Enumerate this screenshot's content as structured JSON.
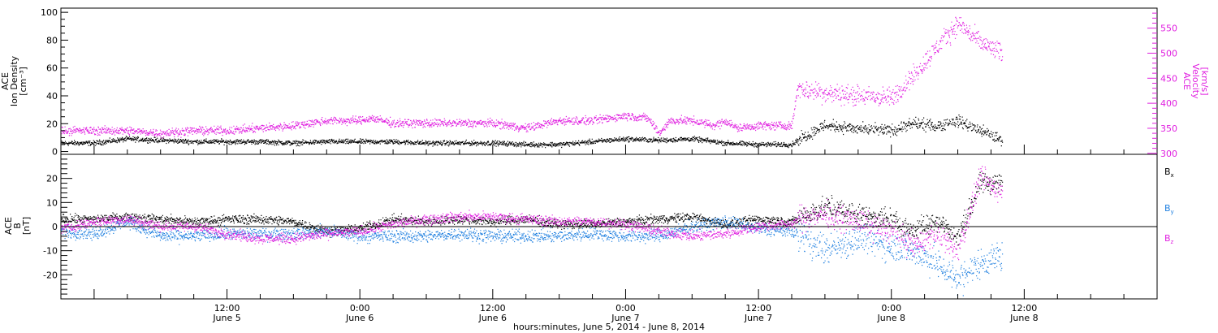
{
  "chart_data": {
    "type": "scatter",
    "xlabel": "hours:minutes, June  5, 2014 - June  8, 2014",
    "time_axis": {
      "range_hours": [
        -3,
        96
      ],
      "ticks": [
        {
          "hour": 12,
          "time": "12:00",
          "date": "June 5"
        },
        {
          "hour": 24,
          "time": "0:00",
          "date": "June 6"
        },
        {
          "hour": 36,
          "time": "12:00",
          "date": "June 6"
        },
        {
          "hour": 48,
          "time": "0:00",
          "date": "June 7"
        },
        {
          "hour": 60,
          "time": "12:00",
          "date": "June 7"
        },
        {
          "hour": 72,
          "time": "0:00",
          "date": "June 8"
        },
        {
          "hour": 84,
          "time": "12:00",
          "date": "June 8"
        }
      ]
    },
    "panels": [
      {
        "id": "plasma",
        "ylabel_lines": [
          "ACE",
          "Ion Density",
          "[cm⁻³]"
        ],
        "y2label_lines": [
          "ACE",
          "Velocity",
          "[km/s]"
        ],
        "ylim": [
          -2,
          103
        ],
        "y2lim": [
          298,
          590
        ],
        "yticks": [
          0,
          20,
          40,
          60,
          80,
          100
        ],
        "y2ticks": [
          300,
          350,
          400,
          450,
          500,
          550
        ],
        "series": [
          {
            "role": "density",
            "axis": "left",
            "color": "#000000",
            "x": [
              -3,
              0,
              3,
              6,
              9,
              12,
              15,
              18,
              21,
              24,
              27,
              30,
              33,
              36,
              39,
              42,
              45,
              48,
              51,
              54,
              57,
              60,
              63,
              63.5,
              66,
              69,
              72,
              74,
              76,
              78,
              80,
              82
            ],
            "y": [
              6,
              6,
              9,
              8,
              7,
              7,
              7,
              6,
              7,
              7,
              7,
              6,
              6,
              6,
              5,
              5,
              7,
              9,
              8,
              9,
              6,
              5,
              5,
              8,
              19,
              16,
              15,
              20,
              18,
              22,
              15,
              8
            ],
            "noise": 1.5
          },
          {
            "role": "velocity",
            "axis": "right",
            "color": "#e020e0",
            "x": [
              -3,
              0,
              3,
              6,
              9,
              12,
              15,
              18,
              21,
              24,
              25,
              27,
              30,
              33,
              36,
              39,
              42,
              45,
              48,
              50,
              51,
              52,
              54,
              56,
              57,
              58,
              60,
              63,
              63.5,
              66,
              69,
              72,
              74,
              76,
              78,
              80,
              82
            ],
            "y": [
              345,
              345,
              345,
              340,
              345,
              345,
              350,
              355,
              365,
              365,
              370,
              360,
              360,
              360,
              360,
              350,
              365,
              365,
              375,
              370,
              340,
              365,
              365,
              355,
              365,
              350,
              355,
              355,
              430,
              420,
              415,
              410,
              455,
              510,
              560,
              520,
              500
            ],
            "noise": 7
          }
        ]
      },
      {
        "id": "mag",
        "ylabel_lines": [
          "ACE",
          "B",
          "[nT]"
        ],
        "ylim": [
          -30,
          30
        ],
        "yticks": [
          -20,
          -10,
          0,
          10,
          20
        ],
        "legend_position": "right",
        "series": [
          {
            "name": "Bx",
            "color": "#000000",
            "x": [
              -3,
              0,
              3,
              6,
              9,
              12,
              15,
              18,
              21,
              24,
              27,
              30,
              33,
              36,
              39,
              42,
              45,
              48,
              51,
              54,
              57,
              60,
              63,
              63.5,
              66,
              69,
              72,
              74,
              76,
              78,
              80,
              82
            ],
            "y": [
              3,
              3,
              4,
              3,
              2,
              3,
              3,
              2,
              -2,
              -1,
              3,
              2,
              3,
              2,
              3,
              1,
              1,
              2,
              3,
              4,
              1,
              3,
              2,
              3,
              8,
              5,
              3,
              -2,
              3,
              -5,
              18,
              18
            ],
            "noise": 1.6
          },
          {
            "name": "By",
            "color": "#2080e0",
            "x": [
              -3,
              0,
              3,
              6,
              9,
              12,
              15,
              18,
              21,
              24,
              27,
              30,
              33,
              36,
              39,
              42,
              45,
              48,
              51,
              54,
              57,
              60,
              63,
              63.5,
              66,
              69,
              72,
              74,
              76,
              78,
              80,
              82
            ],
            "y": [
              -2,
              -3,
              2,
              -4,
              -4,
              -3,
              -3,
              -3,
              -2,
              -4,
              -4,
              -4,
              -3,
              -4,
              -4,
              -4,
              -3,
              -4,
              -4,
              0,
              2,
              -1,
              -2,
              -3,
              -10,
              -5,
              -8,
              -10,
              -15,
              -22,
              -15,
              -12
            ],
            "noise": 2.2
          },
          {
            "name": "Bz",
            "color": "#e020e0",
            "x": [
              -3,
              0,
              3,
              6,
              9,
              12,
              15,
              18,
              21,
              24,
              27,
              30,
              33,
              36,
              39,
              42,
              45,
              48,
              51,
              54,
              57,
              60,
              63,
              63.5,
              66,
              69,
              72,
              74,
              76,
              78,
              80,
              82
            ],
            "y": [
              -1,
              2,
              3,
              0,
              0,
              -3,
              -5,
              -5,
              -3,
              -2,
              1,
              3,
              4,
              4,
              3,
              2,
              2,
              1,
              -2,
              -4,
              -3,
              0,
              1,
              3,
              5,
              2,
              -2,
              -8,
              -3,
              -10,
              20,
              14
            ],
            "noise": 1.8
          }
        ]
      }
    ]
  }
}
